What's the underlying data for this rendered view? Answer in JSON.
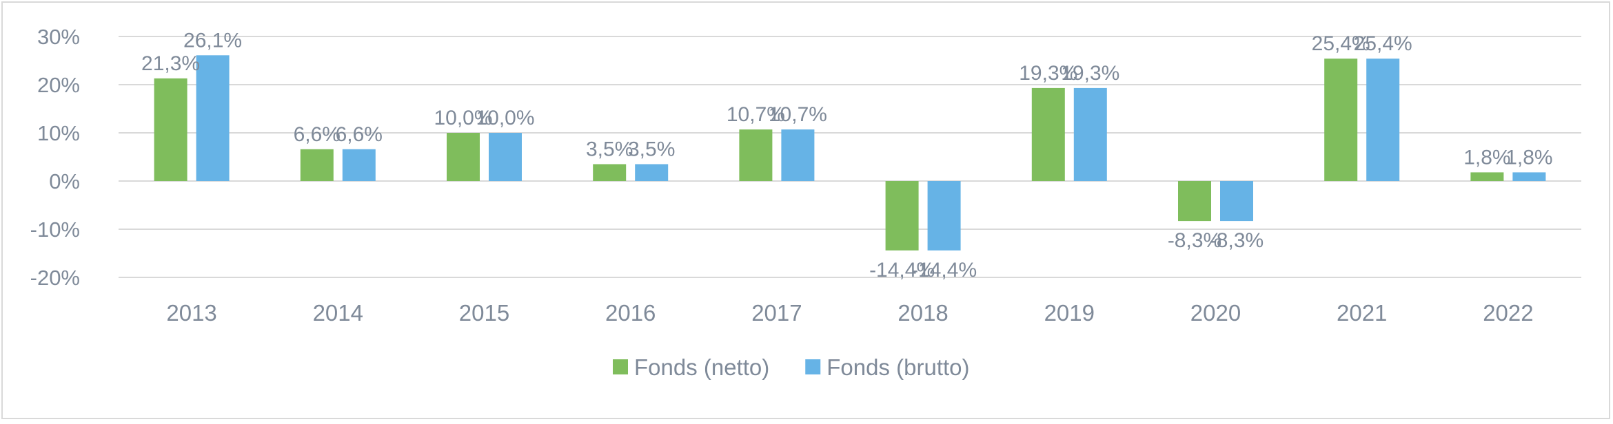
{
  "chart_data": {
    "type": "bar",
    "categories": [
      "2013",
      "2014",
      "2015",
      "2016",
      "2017",
      "2018",
      "2019",
      "2020",
      "2021",
      "2022"
    ],
    "series": [
      {
        "name": "Fonds (netto)",
        "color": "#7fbd5c",
        "values": [
          21.3,
          6.6,
          10.0,
          3.5,
          10.7,
          -14.4,
          19.3,
          -8.3,
          25.4,
          1.8
        ],
        "labels": [
          "21,3%",
          "6,6%",
          "10,0%",
          "3,5%",
          "10,7%",
          "-14,4%",
          "19,3%",
          "-8,3%",
          "25,4%",
          "1,8%"
        ]
      },
      {
        "name": "Fonds (brutto)",
        "color": "#66b3e6",
        "values": [
          26.1,
          6.6,
          10.0,
          3.5,
          10.7,
          -14.4,
          19.3,
          -8.3,
          25.4,
          1.8
        ],
        "labels": [
          "26,1%",
          "6,6%",
          "10,0%",
          "3,5%",
          "10,7%",
          "-14,4%",
          "19,3%",
          "-8,3%",
          "25,4%",
          "1,8%"
        ]
      }
    ],
    "ylim": [
      -20,
      30
    ],
    "yticks": [
      30,
      20,
      10,
      0,
      -10,
      -20
    ],
    "ytick_labels": [
      "30%",
      "20%",
      "10%",
      "0%",
      "-10%",
      "-20%"
    ],
    "grid": true,
    "legend": "bottom-center",
    "title": "",
    "xlabel": "",
    "ylabel": ""
  }
}
